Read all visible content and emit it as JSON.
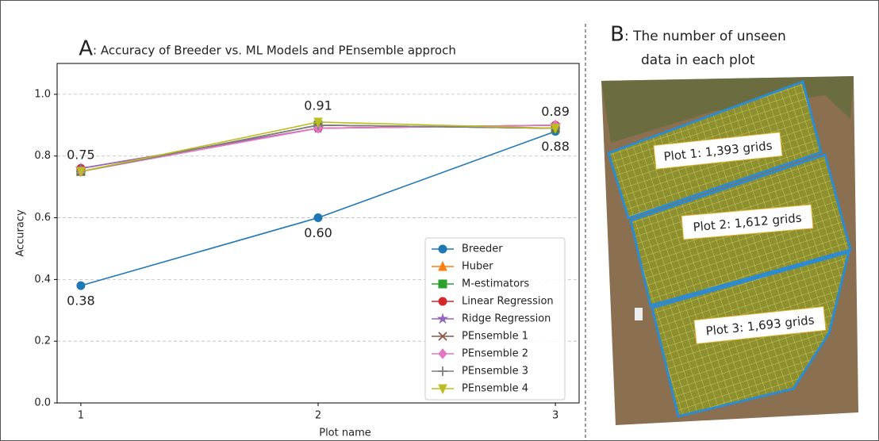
{
  "chart_data": {
    "type": "line",
    "title_letter": "A",
    "title": ": Accuracy of Breeder vs. ML Models and PEnsemble approch",
    "x_label": "Plot name",
    "y_label": "Accuracy",
    "x": [
      1,
      2,
      3
    ],
    "xlim": [
      0.9,
      3.1
    ],
    "xticks": [
      1,
      2,
      3
    ],
    "ylim": [
      0,
      1.1
    ],
    "yticks": [
      {
        "value": 0,
        "label": "0.0"
      },
      0.2,
      0.4,
      0.6,
      0.8,
      {
        "value": 1,
        "label": "1.0"
      }
    ],
    "grid": true,
    "legend": "lower right",
    "series": [
      {
        "name": "Breeder",
        "color": "#1f77b4",
        "marker": "circle",
        "values": [
          0.38,
          0.6,
          0.88
        ],
        "value_labels": [
          "0.38",
          "0.60",
          "0.88"
        ]
      },
      {
        "name": "Huber",
        "color": "#ff7f0e",
        "marker": "triangle-up",
        "values": [
          0.75,
          0.9,
          0.89
        ]
      },
      {
        "name": "M-estimators",
        "color": "#2ca02c",
        "marker": "square",
        "values": [
          0.75,
          0.9,
          0.89
        ]
      },
      {
        "name": "Linear Regression",
        "color": "#d62728",
        "marker": "circle",
        "values": [
          0.76,
          0.89,
          0.9
        ]
      },
      {
        "name": "Ridge Regression",
        "color": "#9467bd",
        "marker": "star",
        "values": [
          0.76,
          0.89,
          0.9
        ]
      },
      {
        "name": "PEnsemble 1",
        "color": "#8c564b",
        "marker": "x",
        "values": [
          0.75,
          0.9,
          0.89
        ]
      },
      {
        "name": "PEnsemble 2",
        "color": "#e377c2",
        "marker": "diamond",
        "values": [
          0.75,
          0.89,
          0.9
        ]
      },
      {
        "name": "PEnsemble 3",
        "color": "#7f7f7f",
        "marker": "plus",
        "values": [
          0.75,
          0.9,
          0.89
        ]
      },
      {
        "name": "PEnsemble 4",
        "color": "#bcbd22",
        "marker": "triangle-down",
        "values": [
          0.75,
          0.91,
          0.89
        ],
        "value_labels": [
          "0.75",
          "0.91",
          "0.89"
        ]
      }
    ]
  },
  "panel_b": {
    "letter": "B",
    "title_lines": [
      ": The number of unseen",
      "data in each plot"
    ],
    "plots": [
      "Plot 1: 1,393 grids",
      "Plot 2: 1,612 grids",
      "Plot 3: 1,693 grids"
    ]
  }
}
